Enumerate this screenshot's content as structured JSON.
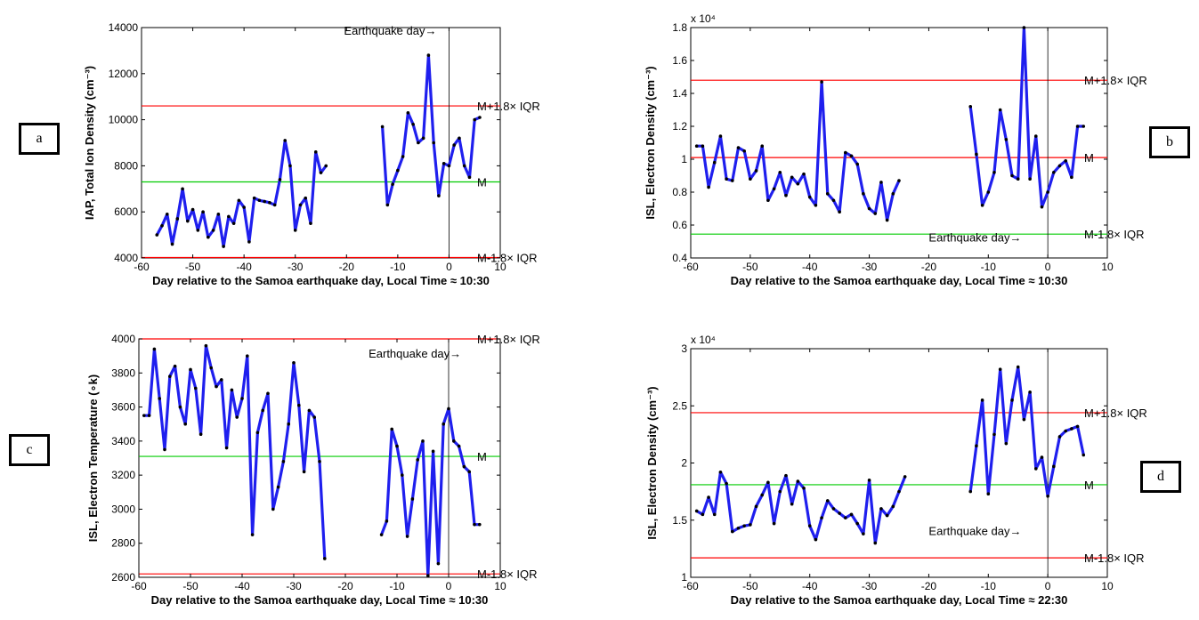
{
  "panel_labels": [
    "a",
    "b",
    "c",
    "d"
  ],
  "chart_data": [
    {
      "type": "line",
      "panel": "a",
      "xlabel": "Day relative to the Samoa earthquake day, Local Time ≈ 10:30",
      "ylabel": "IAP, Total Ion Density (cm⁻³)",
      "xlim": [
        -60,
        10
      ],
      "ylim": [
        4000,
        14000
      ],
      "xticks": [
        -60,
        -50,
        -40,
        -30,
        -20,
        -10,
        0,
        10
      ],
      "yticks": [
        4000,
        6000,
        8000,
        10000,
        12000,
        14000
      ],
      "ytick_labels": [
        "4000",
        "6000",
        "8000",
        "10000",
        "12000",
        "14000"
      ],
      "exponent_label": "",
      "reference_lines": [
        {
          "label": "M+1.8× IQR",
          "y": 10600,
          "color": "#ff0000"
        },
        {
          "label": "M",
          "y": 7300,
          "color": "#00cc00"
        },
        {
          "label": "M-1.8× IQR",
          "y": 4020,
          "color": "#ff0000"
        }
      ],
      "earthquake_label": "Earthquake day→",
      "earthquake_label_pos": [
        -20.5,
        13700
      ],
      "series": [
        {
          "x": [
            -57,
            -56,
            -55,
            -54,
            -53,
            -52,
            -51,
            -50,
            -49,
            -48,
            -47,
            -46,
            -45,
            -44,
            -43,
            -42,
            -41,
            -40,
            -39,
            -38,
            -37,
            -36,
            -35,
            -34,
            -33,
            -32,
            -31,
            -30,
            -29,
            -28,
            -27,
            -26,
            -25,
            -24
          ],
          "values": [
            5000,
            5400,
            5900,
            4600,
            5700,
            7000,
            5600,
            6100,
            5200,
            6000,
            4900,
            5200,
            5900,
            4500,
            5800,
            5500,
            6500,
            6200,
            4700,
            6600,
            6500,
            6450,
            6400,
            6300,
            7400,
            9100,
            8000,
            5200,
            6300,
            6600,
            5500,
            8600,
            7700,
            8000
          ]
        },
        {
          "x": [
            -13,
            -12,
            -11,
            -10,
            -9,
            -8,
            -7,
            -6,
            -5,
            -4,
            -3,
            -2,
            -1,
            0,
            1,
            2,
            3,
            4,
            5,
            6
          ],
          "values": [
            9700,
            6300,
            7200,
            7800,
            8400,
            10300,
            9800,
            9000,
            9200,
            12800,
            9000,
            6700,
            8100,
            8000,
            8900,
            9200,
            8000,
            7500,
            10000,
            10100
          ]
        }
      ],
      "line_color": "#1f1fee"
    },
    {
      "type": "line",
      "panel": "b",
      "xlabel": "Day relative to the Samoa earthquake day, Local Time ≈ 10:30",
      "ylabel": "ISL, Electron Density (cm⁻³)",
      "xlim": [
        -60,
        10
      ],
      "ylim": [
        0.4,
        1.8
      ],
      "xticks": [
        -60,
        -50,
        -40,
        -30,
        -20,
        -10,
        0,
        10
      ],
      "yticks": [
        0.4,
        0.6,
        0.8,
        1.0,
        1.2,
        1.4,
        1.6,
        1.8
      ],
      "ytick_labels": [
        "0.4",
        "0.6",
        "0.8",
        "1",
        "1.2",
        "1.4",
        "1.6",
        "1.8"
      ],
      "exponent_label": "x 10⁴",
      "reference_lines": [
        {
          "label": "M+1.8× IQR",
          "y": 1.48,
          "color": "#ff0000"
        },
        {
          "label": "M",
          "y": 1.01,
          "color": "#ff0000"
        },
        {
          "label": "M-1.8× IQR",
          "y": 0.545,
          "color": "#00cc00"
        }
      ],
      "earthquake_label": "Earthquake day→",
      "earthquake_label_pos": [
        -20,
        0.5
      ],
      "series": [
        {
          "x": [
            -59,
            -58,
            -57,
            -56,
            -55,
            -54,
            -53,
            -52,
            -51,
            -50,
            -49,
            -48,
            -47,
            -46,
            -45,
            -44,
            -43,
            -42,
            -41,
            -40,
            -39,
            -38,
            -37,
            -36,
            -35,
            -34,
            -33,
            -32,
            -31,
            -30,
            -29,
            -28,
            -27,
            -26,
            -25
          ],
          "values": [
            1.08,
            1.08,
            0.83,
            0.98,
            1.14,
            0.88,
            0.87,
            1.07,
            1.05,
            0.88,
            0.93,
            1.08,
            0.75,
            0.82,
            0.92,
            0.78,
            0.89,
            0.85,
            0.91,
            0.77,
            0.72,
            1.47,
            0.79,
            0.75,
            0.68,
            1.04,
            1.02,
            0.97,
            0.79,
            0.7,
            0.67,
            0.86,
            0.63,
            0.79,
            0.87
          ]
        },
        {
          "x": [
            -13,
            -12,
            -11,
            -10,
            -9,
            -8,
            -7,
            -6,
            -5,
            -4,
            -3,
            -2,
            -1,
            0,
            1,
            2,
            3,
            4,
            5,
            6
          ],
          "values": [
            1.32,
            1.03,
            0.72,
            0.8,
            0.92,
            1.3,
            1.12,
            0.9,
            0.88,
            1.8,
            0.88,
            1.14,
            0.71,
            0.8,
            0.92,
            0.96,
            0.99,
            0.89,
            1.2,
            1.2
          ]
        }
      ],
      "line_color": "#1f1fee"
    },
    {
      "type": "line",
      "panel": "c",
      "xlabel": "Day relative to the Samoa earthquake day, Local Time ≈ 10:30",
      "ylabel": "ISL, Electron Temperature (∘k)",
      "xlim": [
        -60,
        10
      ],
      "ylim": [
        2600,
        4000
      ],
      "xticks": [
        -60,
        -50,
        -40,
        -30,
        -20,
        -10,
        0,
        10
      ],
      "yticks": [
        2600,
        2800,
        3000,
        3200,
        3400,
        3600,
        3800,
        4000
      ],
      "ytick_labels": [
        "2600",
        "2800",
        "3000",
        "3200",
        "3400",
        "3600",
        "3800",
        "4000"
      ],
      "exponent_label": "",
      "reference_lines": [
        {
          "label": "M+1.8× IQR",
          "y": 4000,
          "color": "#ff0000"
        },
        {
          "label": "M",
          "y": 3310,
          "color": "#00cc00"
        },
        {
          "label": "M-1.8× IQR",
          "y": 2620,
          "color": "#ff0000"
        }
      ],
      "earthquake_label": "Earthquake day→",
      "earthquake_label_pos": [
        -15.5,
        3890
      ],
      "series": [
        {
          "x": [
            -59,
            -58,
            -57,
            -56,
            -55,
            -54,
            -53,
            -52,
            -51,
            -50,
            -49,
            -48,
            -47,
            -46,
            -45,
            -44,
            -43,
            -42,
            -41,
            -40,
            -39,
            -38,
            -37,
            -36,
            -35,
            -34,
            -33,
            -32,
            -31,
            -30,
            -29,
            -28,
            -27,
            -26,
            -25,
            -24
          ],
          "values": [
            3550,
            3550,
            3940,
            3650,
            3350,
            3780,
            3840,
            3600,
            3500,
            3820,
            3710,
            3440,
            3960,
            3830,
            3720,
            3760,
            3360,
            3700,
            3540,
            3650,
            3900,
            2850,
            3450,
            3580,
            3680,
            3000,
            3130,
            3280,
            3500,
            3860,
            3610,
            3220,
            3580,
            3540,
            3280,
            2710
          ]
        },
        {
          "x": [
            -13,
            -12,
            -11,
            -10,
            -9,
            -8,
            -7,
            -6,
            -5,
            -4,
            -3,
            -2,
            -1,
            0,
            1,
            2,
            3,
            4,
            5,
            6
          ],
          "values": [
            2850,
            2930,
            3470,
            3370,
            3200,
            2840,
            3060,
            3290,
            3400,
            2610,
            3340,
            2680,
            3500,
            3590,
            3400,
            3370,
            3250,
            3220,
            2910,
            2910
          ]
        }
      ],
      "line_color": "#1f1fee"
    },
    {
      "type": "line",
      "panel": "d",
      "xlabel": "Day relative to the Samoa earthquake day, Local Time ≈ 22:30",
      "ylabel": "ISL, Electron Density (cm⁻³)",
      "xlim": [
        -60,
        10
      ],
      "ylim": [
        1.0,
        3.0
      ],
      "xticks": [
        -60,
        -50,
        -40,
        -30,
        -20,
        -10,
        0,
        10
      ],
      "yticks": [
        1.0,
        1.5,
        2.0,
        2.5,
        3.0
      ],
      "ytick_labels": [
        "1",
        "1.5",
        "2",
        "2.5",
        "3"
      ],
      "exponent_label": "x 10⁴",
      "reference_lines": [
        {
          "label": "M+1.8× IQR",
          "y": 2.44,
          "color": "#ff0000"
        },
        {
          "label": "M",
          "y": 1.81,
          "color": "#00cc00"
        },
        {
          "label": "M-1.8× IQR",
          "y": 1.17,
          "color": "#ff0000"
        }
      ],
      "earthquake_label": "Earthquake day→",
      "earthquake_label_pos": [
        -20,
        1.37
      ],
      "series": [
        {
          "x": [
            -59,
            -58,
            -57,
            -56,
            -55,
            -54,
            -53,
            -52,
            -51,
            -50,
            -49,
            -48,
            -47,
            -46,
            -45,
            -44,
            -43,
            -42,
            -41,
            -40,
            -39,
            -38,
            -37,
            -36,
            -35,
            -34,
            -33,
            -32,
            -31,
            -30,
            -29,
            -28,
            -27,
            -26,
            -25,
            -24
          ],
          "values": [
            1.58,
            1.55,
            1.7,
            1.55,
            1.92,
            1.82,
            1.4,
            1.43,
            1.45,
            1.46,
            1.62,
            1.72,
            1.83,
            1.47,
            1.75,
            1.89,
            1.64,
            1.84,
            1.78,
            1.45,
            1.33,
            1.52,
            1.67,
            1.6,
            1.56,
            1.52,
            1.55,
            1.47,
            1.38,
            1.85,
            1.3,
            1.6,
            1.54,
            1.62,
            1.75,
            1.88
          ]
        },
        {
          "x": [
            -13,
            -12,
            -11,
            -10,
            -9,
            -8,
            -7,
            -6,
            -5,
            -4,
            -3,
            -2,
            -1,
            0,
            1,
            2,
            3,
            4,
            5,
            6
          ],
          "values": [
            1.75,
            2.15,
            2.55,
            1.73,
            2.25,
            2.82,
            2.17,
            2.55,
            2.84,
            2.38,
            2.62,
            1.95,
            2.05,
            1.71,
            1.97,
            2.23,
            2.28,
            2.3,
            2.32,
            2.07
          ]
        }
      ],
      "line_color": "#1f1fee"
    }
  ]
}
